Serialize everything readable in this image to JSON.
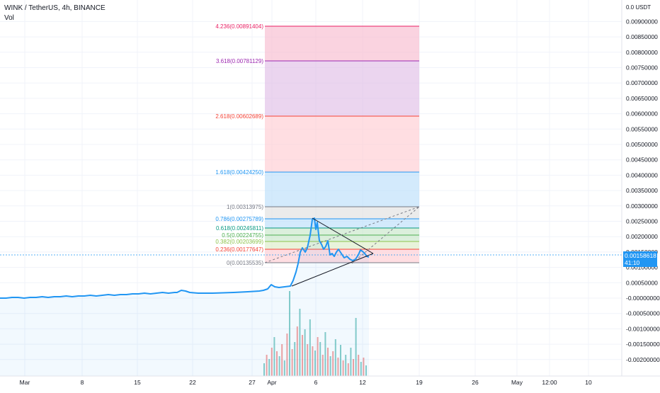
{
  "header": {
    "symbol_title": "WINK / TetherUS, 4h, BINANCE",
    "volume_label": "Vol"
  },
  "price_scale": {
    "currency_label": "0.0 USDT",
    "ticks": [
      "0.00900000",
      "0.00850000",
      "0.00800000",
      "0.00750000",
      "0.00700000",
      "0.00650000",
      "0.00600000",
      "0.00550000",
      "0.00500000",
      "0.00450000",
      "0.00400000",
      "0.00350000",
      "0.00300000",
      "0.00250000",
      "0.00200000",
      "0.00150000",
      "0.00100000",
      "0.00050000",
      "-0.00000000",
      "-0.00050000",
      "-0.00100000",
      "-0.00150000",
      "-0.00200000"
    ],
    "current_price": "0.00158618",
    "countdown": "41:10"
  },
  "time_axis": {
    "labels": [
      "Mar",
      "8",
      "15",
      "22",
      "27",
      "Apr",
      "6",
      "12",
      "19",
      "26",
      "May",
      "12:00",
      "10"
    ]
  },
  "fib_levels": [
    {
      "label": "4.236(0.00891404)",
      "color": "#e91e63"
    },
    {
      "label": "3.618(0.00781129)",
      "color": "#9c27b0"
    },
    {
      "label": "2.618(0.00602689)",
      "color": "#f44336"
    },
    {
      "label": "1.618(0.00424250)",
      "color": "#2196f3"
    },
    {
      "label": "1(0.00313975)",
      "color": "#787b86"
    },
    {
      "label": "0.786(0.00275789)",
      "color": "#2196f3"
    },
    {
      "label": "0.618(0.00245811)",
      "color": "#089981"
    },
    {
      "label": "0.5(0.00224755)",
      "color": "#4caf50"
    },
    {
      "label": "0.382(0.00203699)",
      "color": "#8bc34a"
    },
    {
      "label": "0.236(0.00177647)",
      "color": "#f44336"
    },
    {
      "label": "0(0.00135535)",
      "color": "#787b86"
    }
  ],
  "colors": {
    "line": "#2196f3",
    "vol_up": "#26a69a",
    "vol_down": "#ef5350",
    "triangle": "#131722",
    "price_tag": "#2196f3"
  }
}
